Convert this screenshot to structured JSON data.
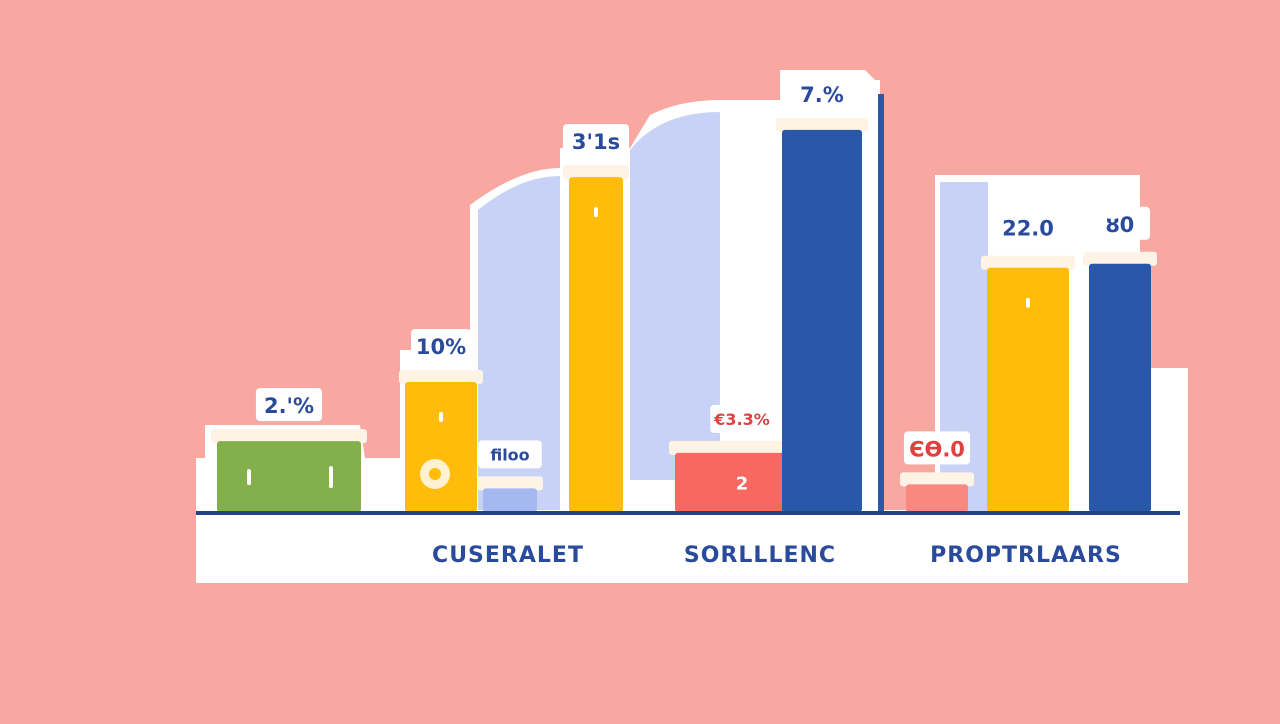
{
  "chart_data": {
    "type": "bar",
    "title": "",
    "xlabel": "",
    "ylabel": "",
    "ylim": [
      0,
      100
    ],
    "grid": false,
    "legend": "none",
    "categories": [
      "CUSERALET",
      "SORLLLENC",
      "PROPTRLAARS"
    ],
    "bars": [
      {
        "category_index": 0,
        "slot": 0,
        "width_slots": 2.0,
        "value": 18,
        "color": "#84b04c",
        "label": "2.'%",
        "inner_label": "",
        "marks": [
          "bar-tick",
          "bar-tick"
        ]
      },
      {
        "category_index": 0,
        "slot": 2,
        "width_slots": 1.0,
        "value": 33,
        "color": "#ffbc0a",
        "label": "10%",
        "inner_label": "",
        "marks": [
          "bar-tick",
          "bar-dot"
        ]
      },
      {
        "category_index": 0,
        "slot": 3,
        "width_slots": 0.75,
        "value": 6,
        "color": "#a6b8f0",
        "label": "filoo",
        "inner_label": "",
        "marks": []
      },
      {
        "category_index": 0,
        "slot": 4,
        "width_slots": 0.75,
        "value": 85,
        "color": "#ffbc0a",
        "label": "3'1s",
        "inner_label": "",
        "marks": [
          "bar-tick"
        ]
      },
      {
        "category_index": 1,
        "slot": 0,
        "width_slots": 1.25,
        "value": 15,
        "color": "#f86860",
        "label": "€3.3%",
        "inner_label": "2",
        "marks": []
      },
      {
        "category_index": 1,
        "slot": 1,
        "width_slots": 0.75,
        "value": 97,
        "color": "#2a58a8",
        "label": "7.%",
        "inner_label": "",
        "marks": []
      },
      {
        "category_index": 2,
        "slot": 0,
        "width_slots": 0.75,
        "value": 7,
        "color": "#f88880",
        "label": "ЄѲ.0",
        "inner_label": "",
        "marks": []
      },
      {
        "category_index": 2,
        "slot": 1,
        "width_slots": 1.0,
        "value": 62,
        "color": "#ffbc0a",
        "label": "22.0",
        "inner_label": "",
        "marks": [
          "bar-tick"
        ]
      },
      {
        "category_index": 2,
        "slot": 2,
        "width_slots": 0.75,
        "value": 63,
        "color": "#2a58a8",
        "label": "ȣ0",
        "inner_label": "",
        "marks": []
      }
    ],
    "background_shapes": [
      {
        "type": "area",
        "from_category": 0,
        "to_category": 1,
        "value_start": 85,
        "value_end": 100,
        "color": "#c8d2f6"
      },
      {
        "type": "area",
        "from_category": 2,
        "to_category": 2,
        "value_start": 80,
        "value_end": 80,
        "color": "#c8d2f6"
      }
    ],
    "colors": {
      "axis": "#23408a",
      "label_text": "#2a4b9c",
      "card": "#ffffff"
    }
  }
}
